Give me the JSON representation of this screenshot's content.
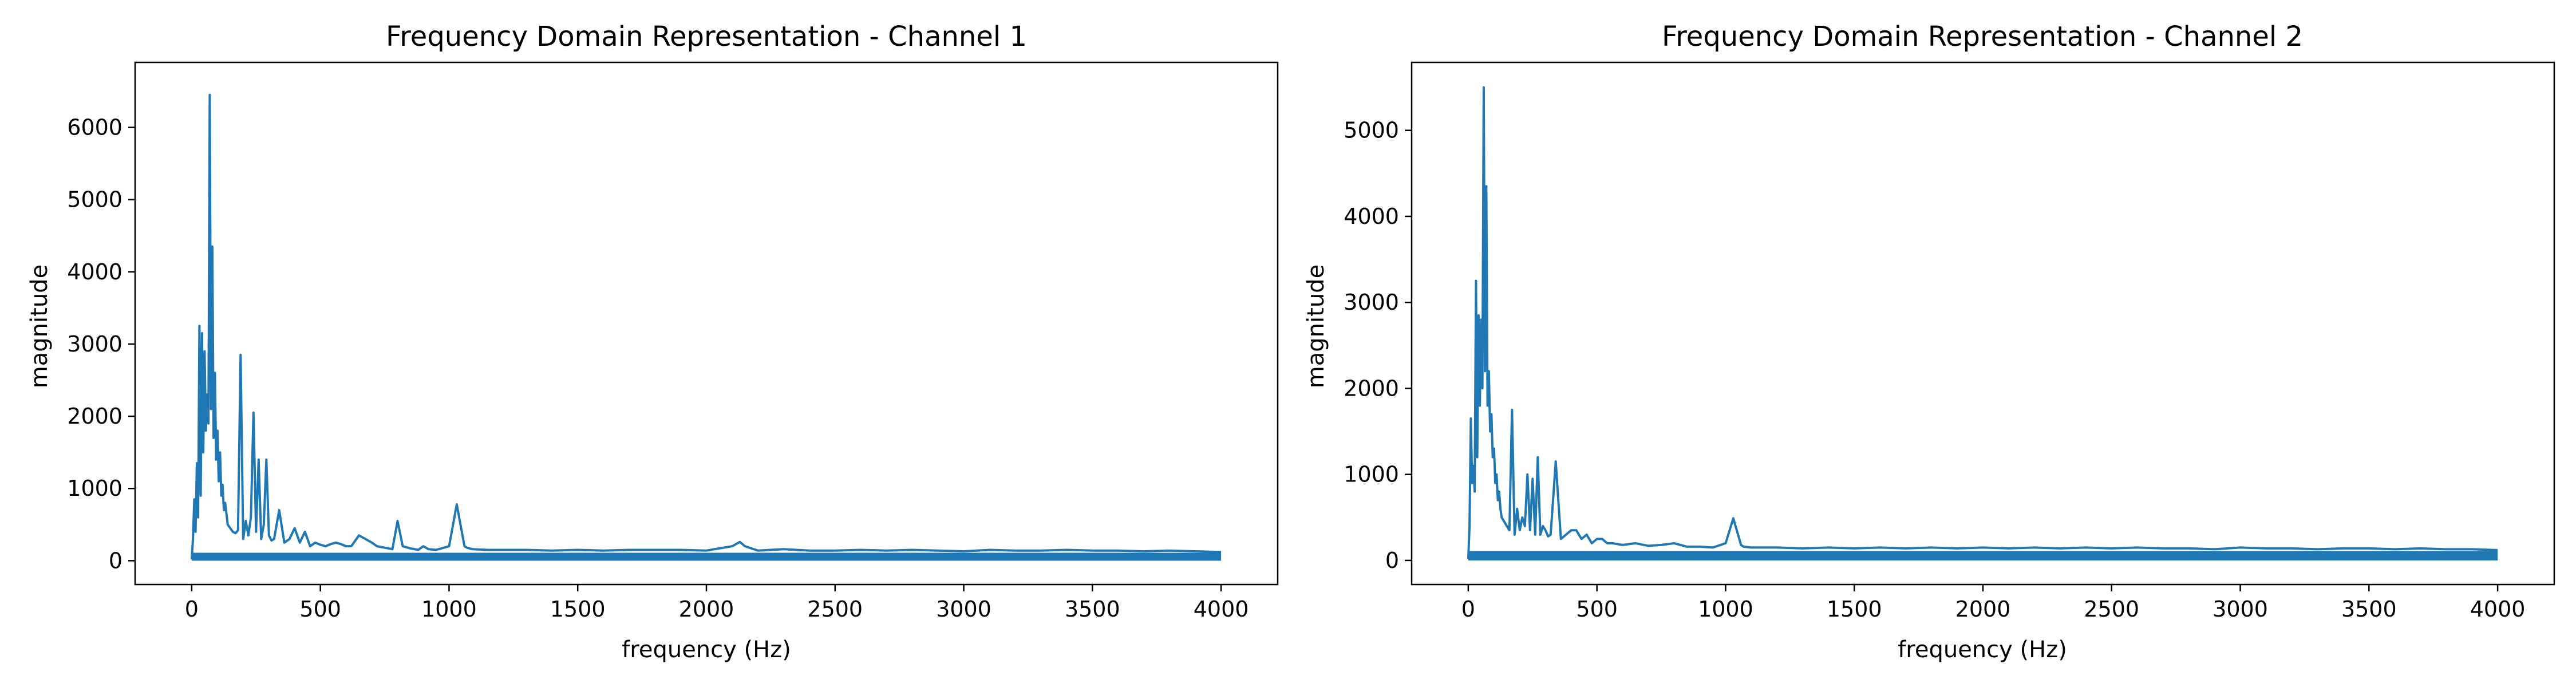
{
  "chart_data": [
    {
      "type": "line",
      "title": "Frequency Domain Representation - Channel 1",
      "xlabel": "frequency (Hz)",
      "ylabel": "magnitude",
      "xlim": [
        -220,
        4220
      ],
      "ylim": [
        -330,
        6900
      ],
      "xticks": [
        0,
        500,
        1000,
        1500,
        2000,
        2500,
        3000,
        3500,
        4000
      ],
      "yticks": [
        0,
        1000,
        2000,
        3000,
        4000,
        5000,
        6000
      ],
      "color": "#1f77b4",
      "grid": false,
      "series": [
        {
          "x": [
            0,
            5,
            10,
            15,
            20,
            25,
            30,
            35,
            40,
            45,
            50,
            55,
            60,
            65,
            70,
            75,
            80,
            85,
            90,
            95,
            100,
            105,
            110,
            115,
            120,
            125,
            130,
            135,
            140,
            150,
            160,
            170,
            180,
            190,
            200,
            210,
            220,
            230,
            240,
            250,
            260,
            270,
            280,
            290,
            300,
            310,
            320,
            340,
            360,
            380,
            400,
            420,
            440,
            460,
            480,
            500,
            520,
            540,
            560,
            580,
            600,
            620,
            650,
            700,
            720,
            750,
            780,
            800,
            820,
            850,
            880,
            900,
            920,
            950,
            1000,
            1030,
            1060,
            1070,
            1090,
            1150,
            1200,
            1300,
            1400,
            1500,
            1600,
            1700,
            1800,
            1900,
            2000,
            2100,
            2130,
            2150,
            2200,
            2300,
            2400,
            2500,
            2600,
            2700,
            2800,
            2900,
            3000,
            3100,
            3200,
            3300,
            3400,
            3500,
            3600,
            3700,
            3800,
            3900,
            4000
          ],
          "y": [
            20,
            300,
            850,
            400,
            1350,
            600,
            3250,
            900,
            3150,
            1500,
            2900,
            1800,
            2300,
            1900,
            6450,
            2100,
            4350,
            1700,
            2600,
            1400,
            1800,
            1100,
            1500,
            900,
            1050,
            700,
            800,
            650,
            500,
            450,
            400,
            380,
            420,
            2850,
            300,
            550,
            350,
            600,
            2050,
            400,
            1400,
            300,
            500,
            1400,
            350,
            280,
            300,
            700,
            250,
            300,
            450,
            250,
            400,
            200,
            250,
            220,
            200,
            230,
            250,
            230,
            200,
            200,
            350,
            250,
            200,
            180,
            160,
            550,
            200,
            170,
            150,
            200,
            160,
            150,
            200,
            780,
            200,
            180,
            160,
            150,
            150,
            150,
            140,
            150,
            140,
            150,
            150,
            150,
            140,
            200,
            260,
            200,
            140,
            160,
            140,
            140,
            150,
            140,
            150,
            140,
            130,
            150,
            140,
            140,
            150,
            140,
            140,
            130,
            140,
            130,
            120
          ]
        }
      ]
    },
    {
      "type": "line",
      "title": "Frequency Domain Representation - Channel 2",
      "xlabel": "frequency (Hz)",
      "ylabel": "magnitude",
      "xlim": [
        -220,
        4220
      ],
      "ylim": [
        -280,
        5790
      ],
      "xticks": [
        0,
        500,
        1000,
        1500,
        2000,
        2500,
        3000,
        3500,
        4000
      ],
      "yticks": [
        0,
        1000,
        2000,
        3000,
        4000,
        5000
      ],
      "color": "#1f77b4",
      "grid": false,
      "series": [
        {
          "x": [
            0,
            5,
            10,
            15,
            20,
            25,
            30,
            35,
            40,
            45,
            50,
            55,
            60,
            65,
            70,
            75,
            80,
            85,
            90,
            95,
            100,
            105,
            110,
            115,
            120,
            125,
            130,
            140,
            150,
            160,
            170,
            180,
            190,
            200,
            210,
            220,
            230,
            240,
            250,
            260,
            270,
            280,
            290,
            300,
            310,
            320,
            340,
            360,
            380,
            400,
            420,
            440,
            460,
            480,
            500,
            520,
            540,
            560,
            600,
            650,
            700,
            750,
            800,
            850,
            900,
            950,
            1000,
            1030,
            1060,
            1070,
            1100,
            1200,
            1300,
            1400,
            1500,
            1600,
            1700,
            1800,
            1900,
            2000,
            2100,
            2200,
            2300,
            2400,
            2500,
            2600,
            2700,
            2800,
            2900,
            3000,
            3100,
            3200,
            3300,
            3400,
            3500,
            3600,
            3700,
            3800,
            3900,
            4000
          ],
          "y": [
            20,
            400,
            1650,
            900,
            1100,
            800,
            3250,
            1200,
            2850,
            1800,
            2800,
            2000,
            5500,
            2200,
            4350,
            1800,
            2200,
            1500,
            1700,
            1200,
            1300,
            900,
            1000,
            700,
            800,
            600,
            500,
            450,
            400,
            350,
            1750,
            300,
            600,
            350,
            500,
            400,
            1000,
            350,
            950,
            300,
            1200,
            300,
            400,
            350,
            280,
            300,
            1150,
            250,
            300,
            350,
            350,
            250,
            300,
            200,
            250,
            250,
            200,
            200,
            180,
            200,
            170,
            180,
            200,
            160,
            160,
            150,
            200,
            490,
            180,
            160,
            150,
            150,
            140,
            150,
            140,
            150,
            140,
            150,
            140,
            150,
            140,
            150,
            140,
            150,
            140,
            150,
            140,
            140,
            130,
            150,
            140,
            140,
            130,
            140,
            140,
            130,
            140,
            130,
            130,
            120
          ]
        }
      ]
    }
  ]
}
